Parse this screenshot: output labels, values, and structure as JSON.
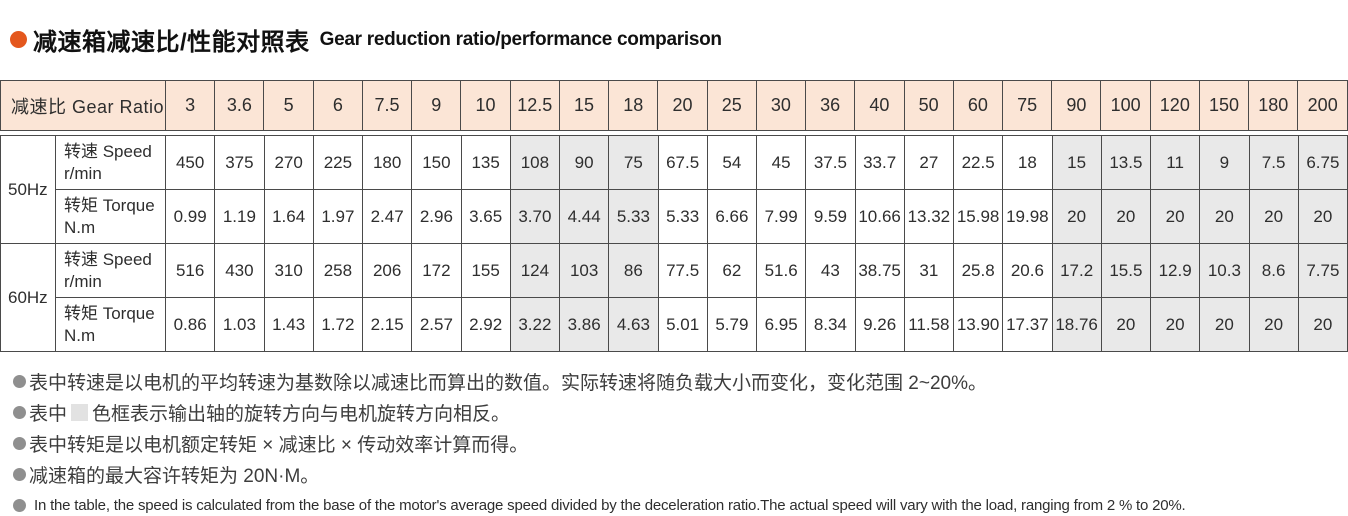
{
  "title": {
    "zh": "减速箱减速比/性能对照表",
    "en": "Gear reduction ratio/performance comparison"
  },
  "colors": {
    "accent_orange": "#e4571d",
    "header_bg": "#fbe5d6",
    "shaded_cell_bg": "#e9e9e9",
    "border": "#4a4a4a",
    "note_bullet": "#8f8f8f"
  },
  "chart_data": {
    "type": "table",
    "title": "减速箱减速比/性能对照表 Gear reduction ratio/performance comparison",
    "ratio_header_label": "减速比 Gear Ratio",
    "ratios": [
      "3",
      "3.6",
      "5",
      "6",
      "7.5",
      "9",
      "10",
      "12.5",
      "15",
      "18",
      "20",
      "25",
      "30",
      "36",
      "40",
      "50",
      "60",
      "75",
      "90",
      "100",
      "120",
      "150",
      "180",
      "200"
    ],
    "shaded_ratio_indexes": [
      7,
      8,
      9,
      18,
      19,
      20,
      21,
      22,
      23
    ],
    "groups": [
      {
        "freq": "50Hz",
        "rows": [
          {
            "label_main": "转速 Speed",
            "label_unit": "r/min",
            "values": [
              "450",
              "375",
              "270",
              "225",
              "180",
              "150",
              "135",
              "108",
              "90",
              "75",
              "67.5",
              "54",
              "45",
              "37.5",
              "33.7",
              "27",
              "22.5",
              "18",
              "15",
              "13.5",
              "11",
              "9",
              "7.5",
              "6.75"
            ]
          },
          {
            "label_main": "转矩 Torque",
            "label_unit": "N.m",
            "values": [
              "0.99",
              "1.19",
              "1.64",
              "1.97",
              "2.47",
              "2.96",
              "3.65",
              "3.70",
              "4.44",
              "5.33",
              "5.33",
              "6.66",
              "7.99",
              "9.59",
              "10.66",
              "13.32",
              "15.98",
              "19.98",
              "20",
              "20",
              "20",
              "20",
              "20",
              "20"
            ]
          }
        ]
      },
      {
        "freq": "60Hz",
        "rows": [
          {
            "label_main": "转速 Speed",
            "label_unit": "r/min",
            "values": [
              "516",
              "430",
              "310",
              "258",
              "206",
              "172",
              "155",
              "124",
              "103",
              "86",
              "77.5",
              "62",
              "51.6",
              "43",
              "38.75",
              "31",
              "25.8",
              "20.6",
              "17.2",
              "15.5",
              "12.9",
              "10.3",
              "8.6",
              "7.75"
            ]
          },
          {
            "label_main": "转矩 Torque",
            "label_unit": "N.m",
            "values": [
              "0.86",
              "1.03",
              "1.43",
              "1.72",
              "2.15",
              "2.57",
              "2.92",
              "3.22",
              "3.86",
              "4.63",
              "5.01",
              "5.79",
              "6.95",
              "8.34",
              "9.26",
              "11.58",
              "13.90",
              "17.37",
              "18.76",
              "20",
              "20",
              "20",
              "20",
              "20"
            ]
          }
        ]
      }
    ]
  },
  "notes": [
    {
      "lang": "zh",
      "swatch": false,
      "text": "表中转速是以电机的平均转速为基数除以减速比而算出的数值。实际转速将随负载大小而变化，变化范围 2~20%。"
    },
    {
      "lang": "zh",
      "swatch": true,
      "pre": "表中",
      "post": "色框表示输出轴的旋转方向与电机旋转方向相反。"
    },
    {
      "lang": "zh",
      "swatch": false,
      "text": "表中转矩是以电机额定转矩 × 减速比 × 传动效率计算而得。"
    },
    {
      "lang": "zh",
      "swatch": false,
      "text": "减速箱的最大容许转矩为 20N·M。"
    },
    {
      "lang": "en",
      "swatch": false,
      "text": "In the table, the speed is calculated from the base of the motor's average speed divided by the deceleration ratio.The actual speed will vary with the load, ranging from 2 % to 20%."
    }
  ]
}
